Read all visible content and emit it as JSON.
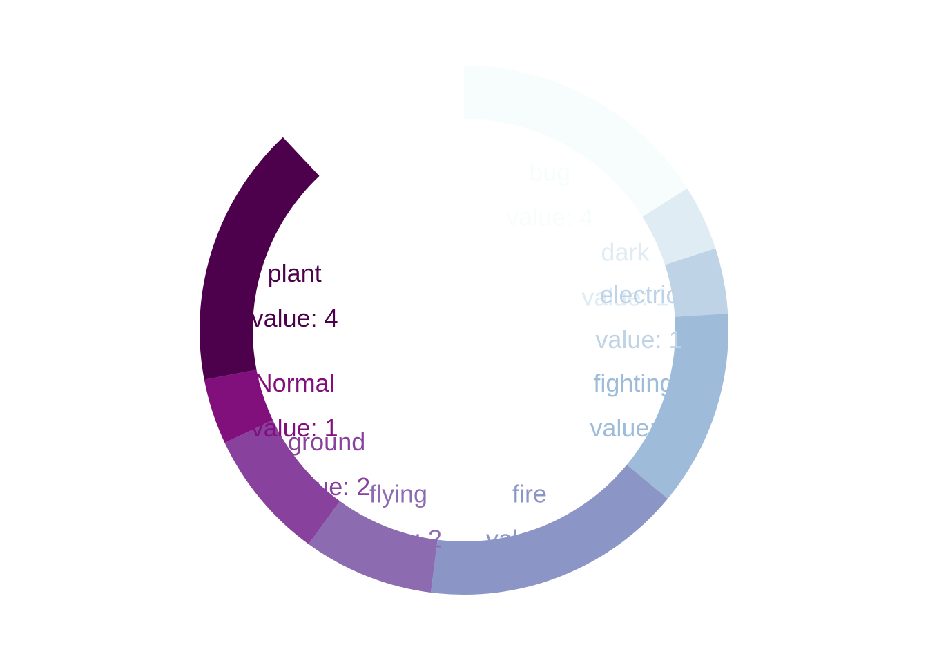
{
  "chart_data": {
    "type": "radial-bar",
    "title": "",
    "full_scale": 25,
    "categories": [
      "bug",
      "dark",
      "electric",
      "fighting",
      "fire",
      "flying",
      "ground",
      "Normal",
      "plant"
    ],
    "values": [
      4,
      1,
      1,
      3,
      4,
      2,
      2,
      1,
      4
    ],
    "labels": [
      {
        "name": "bug",
        "value_text": "value: 4"
      },
      {
        "name": "dark",
        "value_text": "value: 1"
      },
      {
        "name": "electric",
        "value_text": "value: 1"
      },
      {
        "name": "fighting",
        "value_text": "value: 3"
      },
      {
        "name": "fire",
        "value_text": "value: 4"
      },
      {
        "name": "flying",
        "value_text": "value: 2"
      },
      {
        "name": "ground",
        "value_text": "value: 2"
      },
      {
        "name": "Normal",
        "value_text": "value: 1"
      },
      {
        "name": "plant",
        "value_text": "value: 4"
      }
    ],
    "colors": [
      "#f7fcfd",
      "#e0ecf4",
      "#bfd3e6",
      "#9ebcda",
      "#8c96c6",
      "#8c6bb1",
      "#88419d",
      "#810f7c",
      "#4d004b"
    ]
  }
}
